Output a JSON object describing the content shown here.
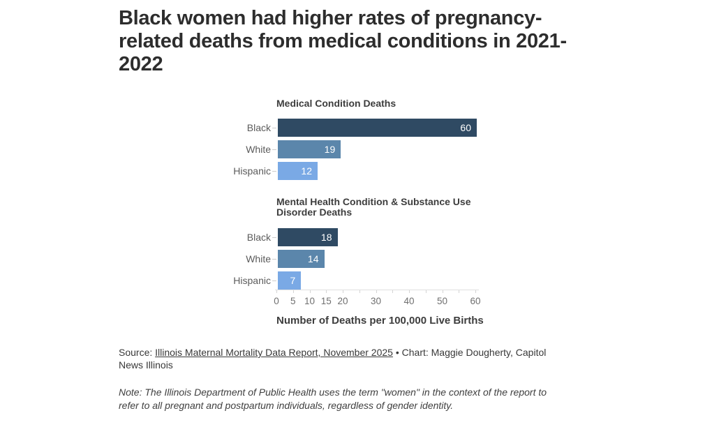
{
  "page": {
    "background": "#ffffff"
  },
  "title": "Black women had higher rates of pregnancy-related deaths from medical conditions in 2021-2022",
  "chart_data": [
    {
      "type": "bar",
      "orientation": "horizontal",
      "title": "Medical Condition Deaths",
      "categories": [
        "Black",
        "White",
        "Hispanic"
      ],
      "values": [
        60,
        19,
        12
      ],
      "xlim": [
        0,
        60
      ],
      "grid": false,
      "value_labels_inside_bar": true
    },
    {
      "type": "bar",
      "orientation": "horizontal",
      "title": "Mental Health Condition & Substance Use Disorder Deaths",
      "categories": [
        "Black",
        "White",
        "Hispanic"
      ],
      "values": [
        18,
        14,
        7
      ],
      "xlim": [
        0,
        60
      ],
      "grid": false,
      "value_labels_inside_bar": true
    }
  ],
  "axis": {
    "max": 60,
    "tick_values": [
      0,
      5,
      10,
      15,
      20,
      25,
      30,
      35,
      40,
      45,
      50,
      55,
      60
    ],
    "tick_labels": [
      "0",
      "5",
      "10",
      "15",
      "20",
      "30",
      "40",
      "50",
      "60"
    ],
    "tick_label_values": [
      0,
      5,
      10,
      15,
      20,
      30,
      40,
      50,
      60
    ],
    "label": "Number of Deaths per 100,000 Live Births"
  },
  "colors": {
    "bars": [
      "#2f4a63",
      "#5b86ab",
      "#7aa9e5"
    ],
    "value_label": "#ffffff",
    "axis_line": "#e0e0e0",
    "title_text": "#2d2d2d"
  },
  "footer": {
    "source_prefix": "Source: ",
    "source_link": "Illinois Maternal Mortality Data Report, November 2025",
    "source_suffix": " • Chart: Maggie Dougherty, Capitol News Illinois",
    "note": "Note: The Illinois Department of Public Health uses the term \"women\" in the context of the report to refer to all pregnant and postpartum individuals, regardless of gender identity."
  }
}
